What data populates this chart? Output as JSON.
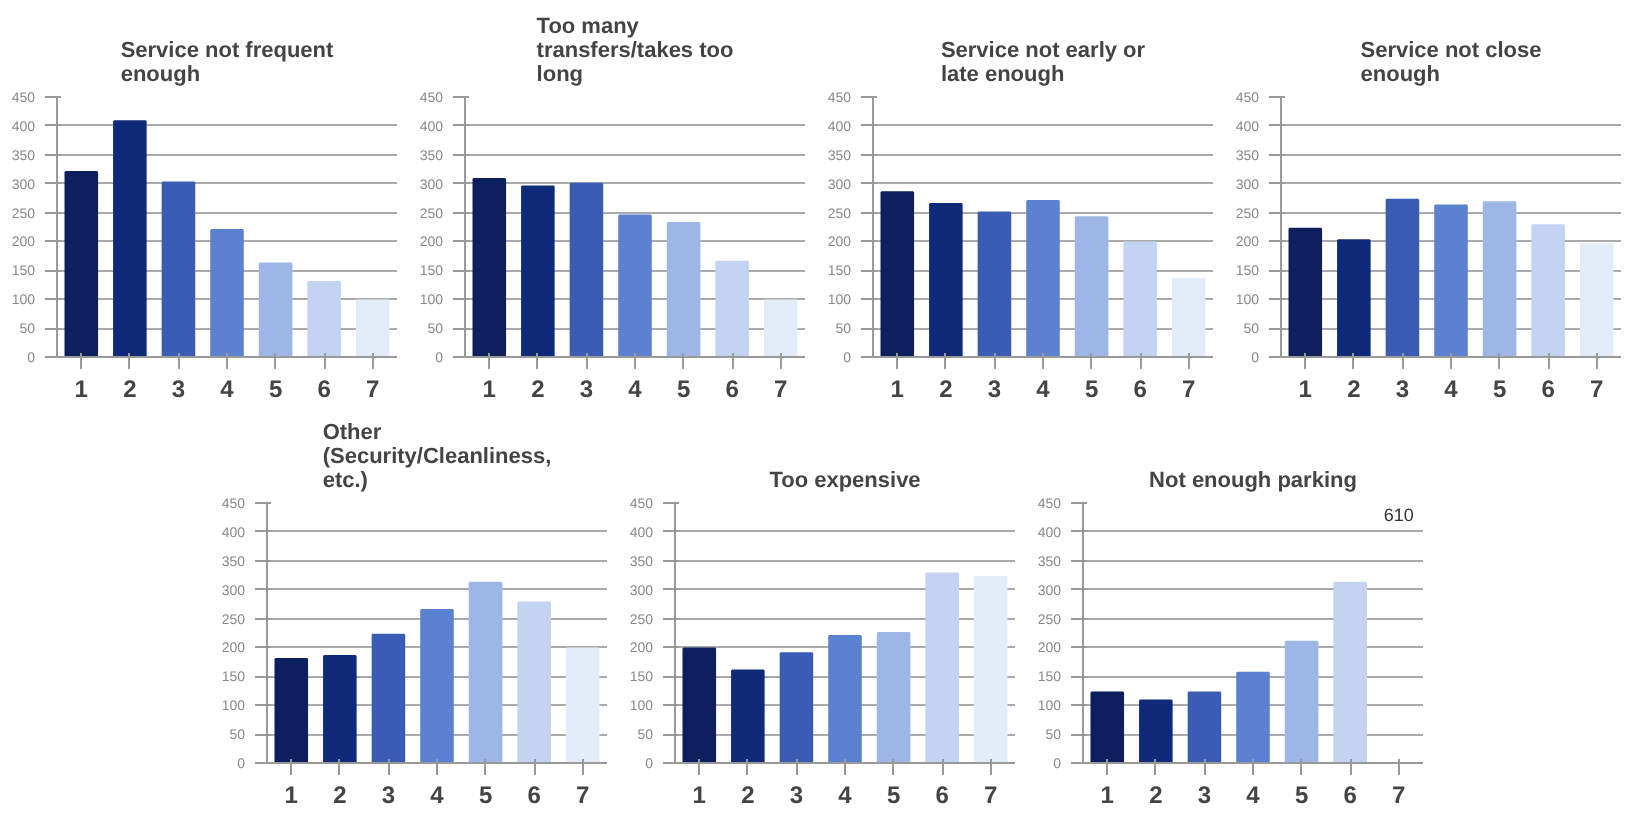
{
  "chart_data": [
    {
      "type": "bar",
      "title": "Service not frequent enough",
      "categories": [
        "1",
        "2",
        "3",
        "4",
        "5",
        "6",
        "7"
      ],
      "values": [
        320,
        408,
        302,
        220,
        162,
        130,
        98
      ],
      "colors": [
        "#0d1f5c",
        "#102a7a",
        "#3a5cb4",
        "#5b82d0",
        "#9db6e6",
        "#c3d4f2",
        "#e3ecf9"
      ],
      "ylim": [
        0,
        450
      ],
      "yticks": [
        0,
        50,
        100,
        150,
        200,
        250,
        300,
        350,
        400,
        450
      ],
      "grid": "y"
    },
    {
      "type": "bar",
      "title": "Too many transfers/takes too long",
      "categories": [
        "1",
        "2",
        "3",
        "4",
        "5",
        "6",
        "7"
      ],
      "values": [
        308,
        295,
        300,
        245,
        232,
        165,
        98
      ],
      "colors": [
        "#0d1f5c",
        "#102a7a",
        "#3a5cb4",
        "#5b82d0",
        "#9db6e6",
        "#c3d4f2",
        "#e3ecf9"
      ],
      "ylim": [
        0,
        450
      ],
      "yticks": [
        0,
        50,
        100,
        150,
        200,
        250,
        300,
        350,
        400,
        450
      ],
      "grid": "y"
    },
    {
      "type": "bar",
      "title": "Service not early or late enough",
      "categories": [
        "1",
        "2",
        "3",
        "4",
        "5",
        "6",
        "7"
      ],
      "values": [
        285,
        265,
        250,
        270,
        242,
        198,
        135
      ],
      "colors": [
        "#0d1f5c",
        "#102a7a",
        "#3a5cb4",
        "#5b82d0",
        "#9db6e6",
        "#c3d4f2",
        "#e3ecf9"
      ],
      "ylim": [
        0,
        450
      ],
      "yticks": [
        0,
        50,
        100,
        150,
        200,
        250,
        300,
        350,
        400,
        450
      ],
      "grid": "y"
    },
    {
      "type": "bar",
      "title": "Service not close enough",
      "categories": [
        "1",
        "2",
        "3",
        "4",
        "5",
        "6",
        "7"
      ],
      "values": [
        222,
        202,
        272,
        262,
        268,
        228,
        195
      ],
      "colors": [
        "#0d1f5c",
        "#102a7a",
        "#3a5cb4",
        "#5b82d0",
        "#9db6e6",
        "#c3d4f2",
        "#e3ecf9"
      ],
      "ylim": [
        0,
        450
      ],
      "yticks": [
        0,
        50,
        100,
        150,
        200,
        250,
        300,
        350,
        400,
        450
      ],
      "grid": "y"
    },
    {
      "type": "bar",
      "title": "Other (Security/Cleanliness, etc.)",
      "categories": [
        "1",
        "2",
        "3",
        "4",
        "5",
        "6",
        "7"
      ],
      "values": [
        180,
        185,
        222,
        265,
        312,
        278,
        198
      ],
      "colors": [
        "#0d1f5c",
        "#102a7a",
        "#3a5cb4",
        "#5b82d0",
        "#9db6e6",
        "#c3d4f2",
        "#e3ecf9"
      ],
      "ylim": [
        0,
        450
      ],
      "yticks": [
        0,
        50,
        100,
        150,
        200,
        250,
        300,
        350,
        400,
        450
      ],
      "grid": "y"
    },
    {
      "type": "bar",
      "title": "Too expensive",
      "categories": [
        "1",
        "2",
        "3",
        "4",
        "5",
        "6",
        "7"
      ],
      "values": [
        198,
        160,
        190,
        220,
        225,
        328,
        322
      ],
      "colors": [
        "#0d1f5c",
        "#102a7a",
        "#3a5cb4",
        "#5b82d0",
        "#9db6e6",
        "#c3d4f2",
        "#e3ecf9"
      ],
      "ylim": [
        0,
        450
      ],
      "yticks": [
        0,
        50,
        100,
        150,
        200,
        250,
        300,
        350,
        400,
        450
      ],
      "grid": "y"
    },
    {
      "type": "bar",
      "title": "Not enough parking",
      "categories": [
        "1",
        "2",
        "3",
        "4",
        "5",
        "6",
        "7"
      ],
      "values": [
        122,
        108,
        122,
        156,
        210,
        312,
        null
      ],
      "value_labels": [
        null,
        null,
        null,
        null,
        null,
        null,
        "610"
      ],
      "colors": [
        "#0d1f5c",
        "#102a7a",
        "#3a5cb4",
        "#5b82d0",
        "#9db6e6",
        "#c3d4f2",
        "#e3ecf9"
      ],
      "ylim": [
        0,
        450
      ],
      "yticks": [
        0,
        50,
        100,
        150,
        200,
        250,
        300,
        350,
        400,
        450
      ],
      "grid": "y"
    }
  ]
}
